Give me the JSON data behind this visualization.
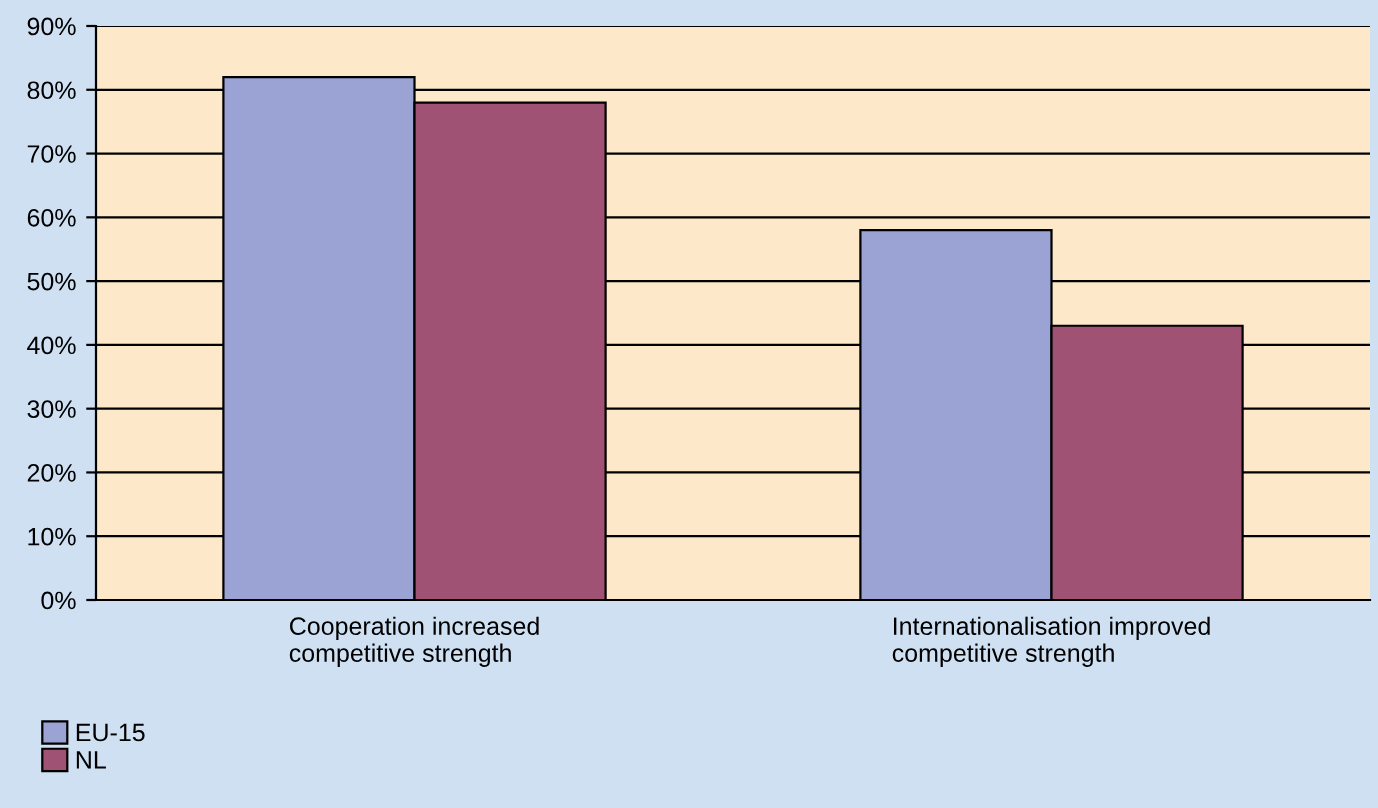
{
  "chart_data": {
    "type": "bar",
    "categories": [
      "Cooperation increased\ncompetitive strength",
      "Internationalisation improved\ncompetitive strength"
    ],
    "series": [
      {
        "name": "EU-15",
        "color": "#9aa3d4",
        "values": [
          82,
          58
        ]
      },
      {
        "name": "NL",
        "color": "#a05274",
        "values": [
          78,
          43
        ]
      }
    ],
    "ylim": [
      0,
      90
    ],
    "yticks": [
      {
        "value": 0,
        "label": "0%"
      },
      {
        "value": 10,
        "label": "10%"
      },
      {
        "value": 20,
        "label": "20%"
      },
      {
        "value": 30,
        "label": "30%"
      },
      {
        "value": 40,
        "label": "40%"
      },
      {
        "value": 50,
        "label": "50%"
      },
      {
        "value": 60,
        "label": "60%"
      },
      {
        "value": 70,
        "label": "70%"
      },
      {
        "value": 80,
        "label": "80%"
      },
      {
        "value": 90,
        "label": "90%"
      }
    ],
    "grid": "y",
    "legend": "bottom left"
  }
}
